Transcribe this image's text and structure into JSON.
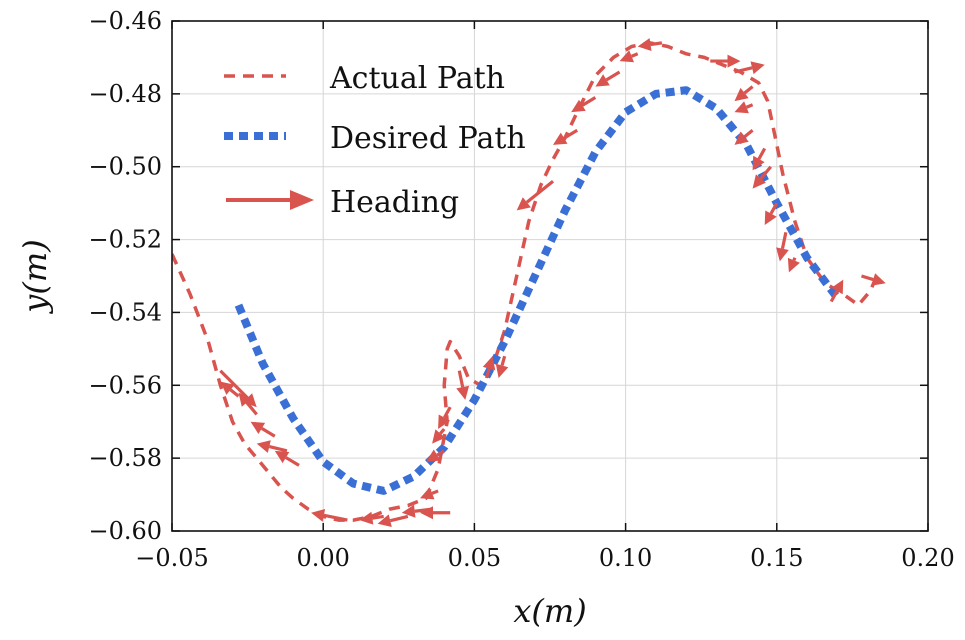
{
  "chart_data": {
    "type": "line",
    "xlabel": "x(m)",
    "ylabel": "y(m)",
    "xlim": [
      -0.05,
      0.2
    ],
    "ylim": [
      -0.6,
      -0.46
    ],
    "xticks": [
      "−0.05",
      "0.00",
      "0.05",
      "0.10",
      "0.15",
      "0.20"
    ],
    "yticks": [
      "−0.46",
      "−0.48",
      "−0.50",
      "−0.52",
      "−0.54",
      "−0.56",
      "−0.58",
      "−0.60"
    ],
    "grid": true,
    "legend_position": "top-left",
    "colors": {
      "actual": "#d9534f",
      "desired": "#3a6fd6",
      "heading": "#d9534f"
    },
    "series": [
      {
        "name": "Actual Path",
        "style": "dashed",
        "x": [
          -0.05,
          -0.044,
          -0.038,
          -0.034,
          -0.03,
          -0.026,
          -0.022,
          -0.018,
          -0.014,
          -0.01,
          -0.005,
          0.0,
          0.005,
          0.01,
          0.016,
          0.022,
          0.028,
          0.034,
          0.038,
          0.041,
          0.04,
          0.041,
          0.042,
          0.045,
          0.048,
          0.052,
          0.056,
          0.06,
          0.064,
          0.068,
          0.072,
          0.076,
          0.08,
          0.084,
          0.09,
          0.096,
          0.102,
          0.108,
          0.114,
          0.12,
          0.126,
          0.132,
          0.138,
          0.144,
          0.147,
          0.149,
          0.152,
          0.156,
          0.16,
          0.166,
          0.172,
          0.177,
          0.181,
          0.183
        ],
        "y": [
          -0.524,
          -0.535,
          -0.548,
          -0.56,
          -0.57,
          -0.576,
          -0.58,
          -0.584,
          -0.588,
          -0.591,
          -0.594,
          -0.596,
          -0.597,
          -0.597,
          -0.596,
          -0.594,
          -0.593,
          -0.591,
          -0.583,
          -0.57,
          -0.56,
          -0.55,
          -0.548,
          -0.552,
          -0.558,
          -0.56,
          -0.555,
          -0.545,
          -0.53,
          -0.515,
          -0.505,
          -0.498,
          -0.492,
          -0.485,
          -0.475,
          -0.47,
          -0.467,
          -0.466,
          -0.467,
          -0.469,
          -0.47,
          -0.472,
          -0.474,
          -0.477,
          -0.482,
          -0.49,
          -0.502,
          -0.515,
          -0.525,
          -0.532,
          -0.535,
          -0.538,
          -0.534,
          -0.53
        ]
      },
      {
        "name": "Desired Path",
        "style": "thick-dotted",
        "x": [
          -0.028,
          -0.02,
          -0.01,
          0.0,
          0.01,
          0.02,
          0.03,
          0.04,
          0.05,
          0.06,
          0.07,
          0.08,
          0.09,
          0.1,
          0.11,
          0.12,
          0.13,
          0.14,
          0.15,
          0.16,
          0.17
        ],
        "y": [
          -0.538,
          -0.554,
          -0.569,
          -0.581,
          -0.587,
          -0.589,
          -0.585,
          -0.577,
          -0.564,
          -0.548,
          -0.53,
          -0.512,
          -0.496,
          -0.485,
          -0.48,
          -0.479,
          -0.484,
          -0.494,
          -0.51,
          -0.525,
          -0.536
        ]
      }
    ],
    "headings": [
      {
        "x": -0.034,
        "y": -0.556,
        "dx": 0.012,
        "dy": -0.01
      },
      {
        "x": -0.028,
        "y": -0.563,
        "dx": -0.006,
        "dy": 0.004
      },
      {
        "x": -0.022,
        "y": -0.568,
        "dx": -0.006,
        "dy": 0.006
      },
      {
        "x": -0.016,
        "y": -0.574,
        "dx": -0.008,
        "dy": 0.004
      },
      {
        "x": -0.012,
        "y": -0.578,
        "dx": -0.01,
        "dy": 0.002
      },
      {
        "x": -0.008,
        "y": -0.582,
        "dx": -0.008,
        "dy": 0.004
      },
      {
        "x": 0.008,
        "y": -0.597,
        "dx": -0.012,
        "dy": 0.002
      },
      {
        "x": 0.02,
        "y": -0.596,
        "dx": -0.008,
        "dy": -0.001
      },
      {
        "x": 0.028,
        "y": -0.596,
        "dx": -0.01,
        "dy": -0.002
      },
      {
        "x": 0.036,
        "y": -0.594,
        "dx": -0.01,
        "dy": -0.001
      },
      {
        "x": 0.042,
        "y": -0.595,
        "dx": -0.01,
        "dy": 0.0
      },
      {
        "x": 0.038,
        "y": -0.589,
        "dx": -0.006,
        "dy": -0.002
      },
      {
        "x": 0.04,
        "y": -0.578,
        "dx": -0.006,
        "dy": -0.003
      },
      {
        "x": 0.04,
        "y": -0.572,
        "dx": -0.004,
        "dy": -0.004
      },
      {
        "x": 0.042,
        "y": -0.566,
        "dx": -0.004,
        "dy": -0.006
      },
      {
        "x": 0.045,
        "y": -0.556,
        "dx": 0.002,
        "dy": -0.008
      },
      {
        "x": 0.054,
        "y": -0.558,
        "dx": 0.002,
        "dy": 0.006
      },
      {
        "x": 0.06,
        "y": -0.552,
        "dx": -0.002,
        "dy": -0.006
      },
      {
        "x": 0.076,
        "y": -0.504,
        "dx": -0.012,
        "dy": -0.008
      },
      {
        "x": 0.084,
        "y": -0.49,
        "dx": -0.008,
        "dy": -0.004
      },
      {
        "x": 0.09,
        "y": -0.481,
        "dx": -0.008,
        "dy": -0.004
      },
      {
        "x": 0.098,
        "y": -0.474,
        "dx": -0.008,
        "dy": -0.004
      },
      {
        "x": 0.104,
        "y": -0.469,
        "dx": -0.006,
        "dy": -0.002
      },
      {
        "x": 0.112,
        "y": -0.466,
        "dx": -0.008,
        "dy": -0.001
      },
      {
        "x": 0.128,
        "y": -0.471,
        "dx": 0.01,
        "dy": 0.0
      },
      {
        "x": 0.136,
        "y": -0.474,
        "dx": 0.01,
        "dy": 0.002
      },
      {
        "x": 0.142,
        "y": -0.478,
        "dx": -0.006,
        "dy": -0.004
      },
      {
        "x": 0.142,
        "y": -0.483,
        "dx": -0.006,
        "dy": -0.002
      },
      {
        "x": 0.142,
        "y": -0.49,
        "dx": -0.006,
        "dy": -0.004
      },
      {
        "x": 0.146,
        "y": -0.495,
        "dx": -0.004,
        "dy": -0.006
      },
      {
        "x": 0.148,
        "y": -0.5,
        "dx": -0.006,
        "dy": -0.006
      },
      {
        "x": 0.15,
        "y": -0.51,
        "dx": -0.004,
        "dy": -0.006
      },
      {
        "x": 0.153,
        "y": -0.518,
        "dx": -0.002,
        "dy": -0.008
      },
      {
        "x": 0.156,
        "y": -0.525,
        "dx": -0.002,
        "dy": -0.004
      },
      {
        "x": 0.168,
        "y": -0.537,
        "dx": 0.004,
        "dy": 0.006
      },
      {
        "x": 0.178,
        "y": -0.53,
        "dx": 0.008,
        "dy": -0.002
      }
    ]
  },
  "legend": {
    "actual_label": "Actual Path",
    "desired_label": "Desired Path",
    "heading_label": "Heading"
  }
}
